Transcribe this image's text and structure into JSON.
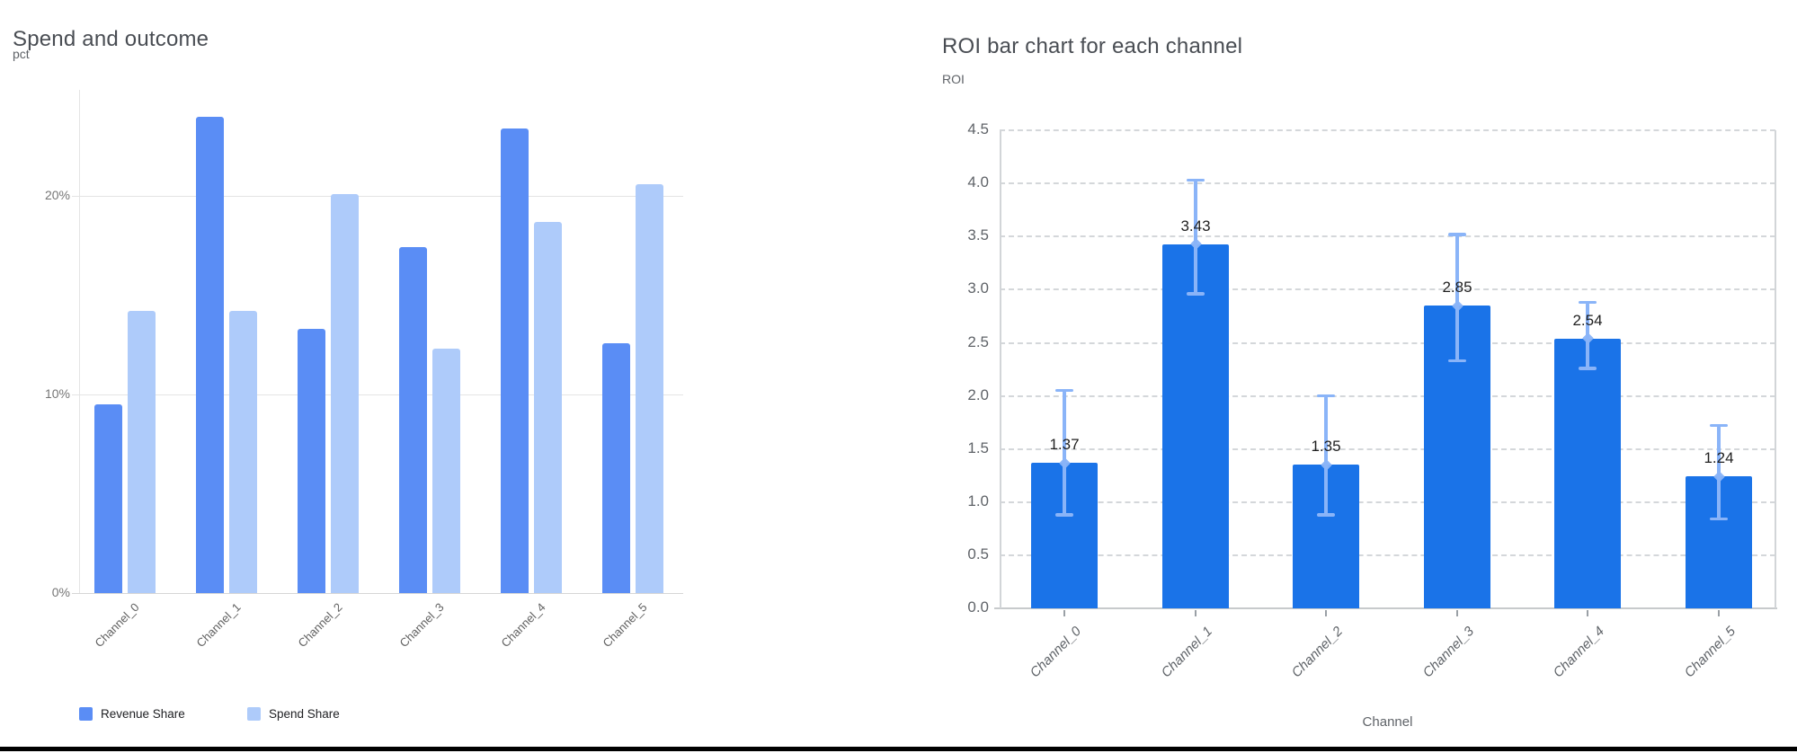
{
  "chart_data": [
    {
      "type": "bar",
      "title": "Spend and outcome",
      "ylabel": "pct",
      "xlabel": "",
      "categories": [
        "Channel_0",
        "Channel_1",
        "Channel_2",
        "Channel_3",
        "Channel_4",
        "Channel_5"
      ],
      "series": [
        {
          "name": "Revenue Share",
          "color": "#5a8df5",
          "values": [
            9.5,
            24.0,
            13.3,
            17.4,
            23.4,
            12.6
          ]
        },
        {
          "name": "Spend Share",
          "color": "#aecbfa",
          "values": [
            14.2,
            14.2,
            20.1,
            12.3,
            18.7,
            20.6
          ]
        }
      ],
      "y_ticks": {
        "values": [
          0,
          10,
          20
        ],
        "labels": [
          "0%",
          "10%",
          "20%"
        ]
      },
      "ylim": [
        0,
        25.3
      ],
      "value_unit": "percent",
      "grid": "solid",
      "legend_position": "bottom"
    },
    {
      "type": "bar",
      "title": "ROI bar chart for each channel",
      "ylabel": "ROI",
      "xlabel": "Channel",
      "categories": [
        "Channel_0",
        "Channel_1",
        "Channel_2",
        "Channel_3",
        "Channel_4",
        "Channel_5"
      ],
      "series": [
        {
          "name": "ROI",
          "color": "#1a73e8",
          "values": [
            1.37,
            3.43,
            1.35,
            2.85,
            2.54,
            1.24
          ]
        }
      ],
      "data_labels": [
        "1.37",
        "3.43",
        "1.35",
        "2.85",
        "2.54",
        "1.24"
      ],
      "error_bars": {
        "color": "#8ab4f8",
        "low": [
          0.88,
          2.96,
          0.88,
          2.33,
          2.26,
          0.84
        ],
        "high": [
          2.05,
          4.03,
          2.0,
          3.52,
          2.88,
          1.72
        ]
      },
      "y_ticks": {
        "values": [
          0,
          0.5,
          1,
          1.5,
          2,
          2.5,
          3,
          3.5,
          4,
          4.5
        ],
        "labels": [
          "0.0",
          "0.5",
          "1.0",
          "1.5",
          "2.0",
          "2.5",
          "3.0",
          "3.5",
          "4.0",
          "4.5"
        ]
      },
      "ylim": [
        0,
        4.5
      ],
      "grid": "dashed",
      "legend_position": "none"
    }
  ]
}
